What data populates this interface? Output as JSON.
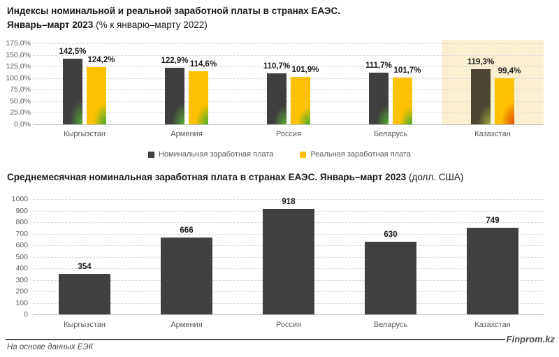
{
  "header1": {
    "line1": "Индексы номинальной и реальной заработной платы в странах ЕАЭС.",
    "line2_bold": "Январь–март 2023",
    "line2_rest": " (% к январю–марту 2022)"
  },
  "header2": {
    "bold": "Среднемесячная номинальная заработная плата в странах ЕАЭС. Январь–март 2023",
    "rest": " (долл. США)"
  },
  "legend": {
    "items": [
      {
        "label": "Номинальная заработная плата",
        "color": "#404040"
      },
      {
        "label": "Реальная заработная плата",
        "color": "#fdc101"
      }
    ]
  },
  "footer": {
    "source_note": "На основе данных ЕЭК",
    "brand": "Finprom.kz"
  },
  "colors": {
    "gridline": "#d9d9d9",
    "baseline": "#bfbfbf",
    "text_muted": "#595959",
    "text_dark": "#1a1a1a",
    "highlight_band": "#faf0cf"
  },
  "chart_data": [
    {
      "type": "bar",
      "title": "Индексы номинальной и реальной заработной платы в странах ЕАЭС. Январь–март 2023 (% к январю–марту 2022)",
      "categories": [
        "Кыргызстан",
        "Армения",
        "Россия",
        "Беларусь",
        "Казахстан"
      ],
      "series": [
        {
          "name": "Номинальная заработная плата",
          "values": [
            142.5,
            122.9,
            110.7,
            111.7,
            119.3
          ],
          "value_labels": [
            "142,5%",
            "122,9%",
            "110,7%",
            "111,7%",
            "119,3%"
          ],
          "bar_colors": [
            "#3f3f3f",
            "#3f3f3f",
            "#3f3f3f",
            "#3f3f3f",
            "#4b4631"
          ],
          "corner_colors": [
            "#55a636",
            "#55a636",
            "#55a636",
            "#55a636",
            "#9aa33e"
          ]
        },
        {
          "name": "Реальная заработная плата",
          "values": [
            124.2,
            114.6,
            101.9,
            101.7,
            99.4
          ],
          "value_labels": [
            "124,2%",
            "114,6%",
            "101,9%",
            "101,7%",
            "99,4%"
          ],
          "bar_colors": [
            "#fdc101",
            "#fdc101",
            "#fdc101",
            "#fdc101",
            "#fdc101"
          ],
          "corner_colors": [
            "#4eae2d",
            "#4eae2d",
            "#4eae2d",
            "#4eae2d",
            "#e04b00"
          ]
        }
      ],
      "ylim": [
        0,
        175
      ],
      "y_ticks": [
        "0,0%",
        "25,0%",
        "50,0%",
        "75,0%",
        "100,0%",
        "125,0%",
        "150,0%",
        "175,0%"
      ],
      "y_tick_step": 25,
      "grid": "horizontal dashed",
      "legend_position": "bottom center",
      "highlight_category": "Казахстан",
      "highlight_color": "#faf0cf"
    },
    {
      "type": "bar",
      "title": "Среднемесячная номинальная заработная плата в странах ЕАЭС. Январь–март 2023 (долл. США)",
      "categories": [
        "Кыргызстан",
        "Армения",
        "Россия",
        "Беларусь",
        "Казахстан"
      ],
      "values": [
        354,
        666,
        918,
        630,
        749
      ],
      "value_labels": [
        "354",
        "666",
        "918",
        "630",
        "749"
      ],
      "bar_color": "#404040",
      "ylim": [
        0,
        1000
      ],
      "y_ticks": [
        "0",
        "100",
        "200",
        "300",
        "400",
        "500",
        "600",
        "700",
        "800",
        "900",
        "1000"
      ],
      "y_tick_step": 100,
      "grid": "horizontal dashed",
      "legend_position": "none"
    }
  ]
}
